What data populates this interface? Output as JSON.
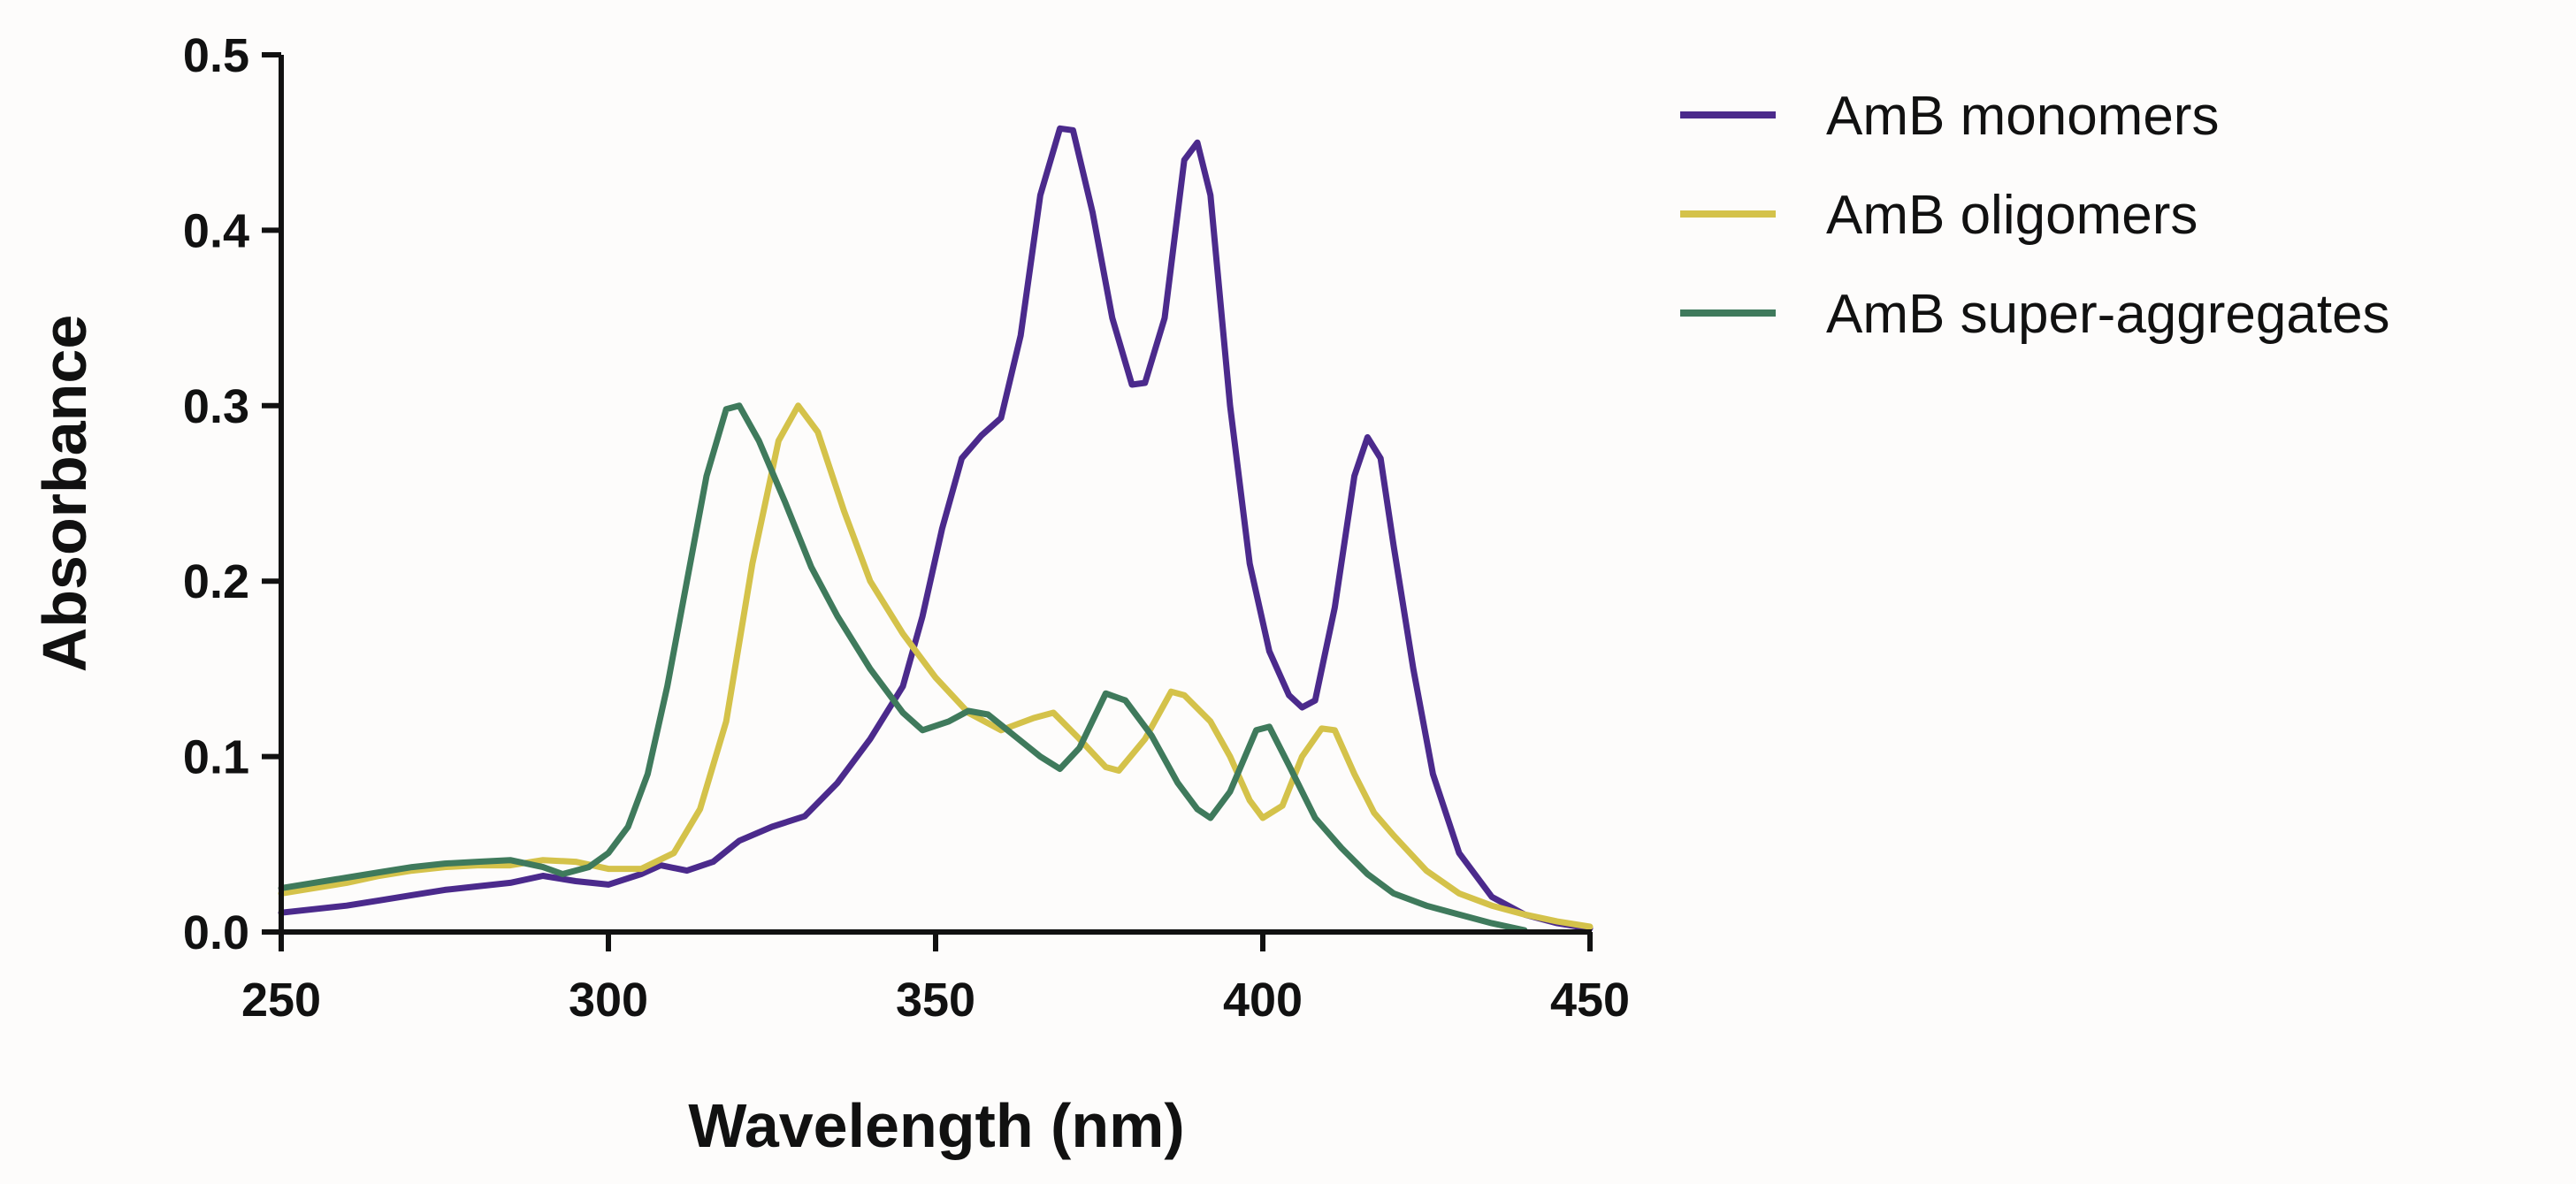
{
  "chart_data": {
    "type": "line",
    "title": "",
    "xlabel": "Wavelength (nm)",
    "ylabel": "Absorbance",
    "xlim": [
      250,
      450
    ],
    "ylim": [
      0.0,
      0.5
    ],
    "xticks": [
      "250",
      "300",
      "350",
      "400",
      "450"
    ],
    "yticks": [
      "0.0",
      "0.1",
      "0.2",
      "0.3",
      "0.4",
      "0.5"
    ],
    "grid": false,
    "legend": "top-right (outside plot)",
    "series": [
      {
        "name": "AmB monomers",
        "color": "#4b2a8c",
        "points": [
          [
            250,
            0.011
          ],
          [
            255,
            0.013
          ],
          [
            260,
            0.015
          ],
          [
            265,
            0.018
          ],
          [
            270,
            0.021
          ],
          [
            275,
            0.024
          ],
          [
            280,
            0.026
          ],
          [
            285,
            0.028
          ],
          [
            290,
            0.032
          ],
          [
            295,
            0.029
          ],
          [
            300,
            0.027
          ],
          [
            305,
            0.033
          ],
          [
            308,
            0.038
          ],
          [
            312,
            0.035
          ],
          [
            316,
            0.04
          ],
          [
            320,
            0.052
          ],
          [
            325,
            0.06
          ],
          [
            330,
            0.066
          ],
          [
            335,
            0.085
          ],
          [
            340,
            0.11
          ],
          [
            345,
            0.14
          ],
          [
            348,
            0.18
          ],
          [
            351,
            0.23
          ],
          [
            354,
            0.27
          ],
          [
            357,
            0.283
          ],
          [
            360,
            0.293
          ],
          [
            363,
            0.34
          ],
          [
            366,
            0.42
          ],
          [
            369,
            0.458
          ],
          [
            371,
            0.457
          ],
          [
            374,
            0.41
          ],
          [
            377,
            0.35
          ],
          [
            380,
            0.312
          ],
          [
            382,
            0.313
          ],
          [
            385,
            0.35
          ],
          [
            388,
            0.44
          ],
          [
            390,
            0.45
          ],
          [
            392,
            0.42
          ],
          [
            395,
            0.3
          ],
          [
            398,
            0.21
          ],
          [
            401,
            0.16
          ],
          [
            404,
            0.135
          ],
          [
            406,
            0.128
          ],
          [
            408,
            0.132
          ],
          [
            411,
            0.185
          ],
          [
            414,
            0.26
          ],
          [
            416,
            0.282
          ],
          [
            418,
            0.27
          ],
          [
            420,
            0.22
          ],
          [
            423,
            0.15
          ],
          [
            426,
            0.09
          ],
          [
            430,
            0.045
          ],
          [
            435,
            0.02
          ],
          [
            440,
            0.01
          ],
          [
            445,
            0.005
          ],
          [
            450,
            0.002
          ]
        ]
      },
      {
        "name": "AmB oligomers",
        "color": "#d4c24a",
        "points": [
          [
            250,
            0.022
          ],
          [
            255,
            0.025
          ],
          [
            260,
            0.028
          ],
          [
            265,
            0.032
          ],
          [
            270,
            0.035
          ],
          [
            275,
            0.037
          ],
          [
            280,
            0.038
          ],
          [
            285,
            0.038
          ],
          [
            290,
            0.041
          ],
          [
            295,
            0.04
          ],
          [
            300,
            0.036
          ],
          [
            305,
            0.036
          ],
          [
            310,
            0.045
          ],
          [
            314,
            0.07
          ],
          [
            318,
            0.12
          ],
          [
            322,
            0.21
          ],
          [
            326,
            0.28
          ],
          [
            329,
            0.3
          ],
          [
            332,
            0.285
          ],
          [
            336,
            0.24
          ],
          [
            340,
            0.2
          ],
          [
            345,
            0.17
          ],
          [
            350,
            0.145
          ],
          [
            355,
            0.125
          ],
          [
            360,
            0.115
          ],
          [
            365,
            0.122
          ],
          [
            368,
            0.125
          ],
          [
            372,
            0.11
          ],
          [
            376,
            0.094
          ],
          [
            378,
            0.092
          ],
          [
            382,
            0.11
          ],
          [
            386,
            0.137
          ],
          [
            388,
            0.135
          ],
          [
            392,
            0.12
          ],
          [
            395,
            0.1
          ],
          [
            398,
            0.075
          ],
          [
            400,
            0.065
          ],
          [
            403,
            0.072
          ],
          [
            406,
            0.1
          ],
          [
            409,
            0.116
          ],
          [
            411,
            0.115
          ],
          [
            414,
            0.09
          ],
          [
            417,
            0.068
          ],
          [
            420,
            0.055
          ],
          [
            425,
            0.035
          ],
          [
            430,
            0.022
          ],
          [
            435,
            0.015
          ],
          [
            440,
            0.01
          ],
          [
            445,
            0.006
          ],
          [
            450,
            0.003
          ]
        ]
      },
      {
        "name": "AmB super-aggregates",
        "color": "#3f7a5c",
        "points": [
          [
            250,
            0.025
          ],
          [
            255,
            0.028
          ],
          [
            260,
            0.031
          ],
          [
            265,
            0.034
          ],
          [
            270,
            0.037
          ],
          [
            275,
            0.039
          ],
          [
            280,
            0.04
          ],
          [
            285,
            0.041
          ],
          [
            290,
            0.037
          ],
          [
            293,
            0.033
          ],
          [
            297,
            0.037
          ],
          [
            300,
            0.045
          ],
          [
            303,
            0.06
          ],
          [
            306,
            0.09
          ],
          [
            309,
            0.14
          ],
          [
            312,
            0.2
          ],
          [
            315,
            0.26
          ],
          [
            318,
            0.298
          ],
          [
            320,
            0.3
          ],
          [
            323,
            0.28
          ],
          [
            327,
            0.245
          ],
          [
            331,
            0.208
          ],
          [
            335,
            0.18
          ],
          [
            340,
            0.15
          ],
          [
            345,
            0.125
          ],
          [
            348,
            0.115
          ],
          [
            352,
            0.12
          ],
          [
            355,
            0.126
          ],
          [
            358,
            0.124
          ],
          [
            362,
            0.112
          ],
          [
            366,
            0.1
          ],
          [
            369,
            0.093
          ],
          [
            372,
            0.105
          ],
          [
            376,
            0.136
          ],
          [
            379,
            0.132
          ],
          [
            383,
            0.112
          ],
          [
            387,
            0.085
          ],
          [
            390,
            0.07
          ],
          [
            392,
            0.065
          ],
          [
            395,
            0.08
          ],
          [
            399,
            0.115
          ],
          [
            401,
            0.117
          ],
          [
            404,
            0.095
          ],
          [
            408,
            0.065
          ],
          [
            412,
            0.048
          ],
          [
            416,
            0.033
          ],
          [
            420,
            0.022
          ],
          [
            425,
            0.015
          ],
          [
            430,
            0.01
          ],
          [
            435,
            0.005
          ],
          [
            440,
            0.001
          ]
        ]
      }
    ]
  }
}
